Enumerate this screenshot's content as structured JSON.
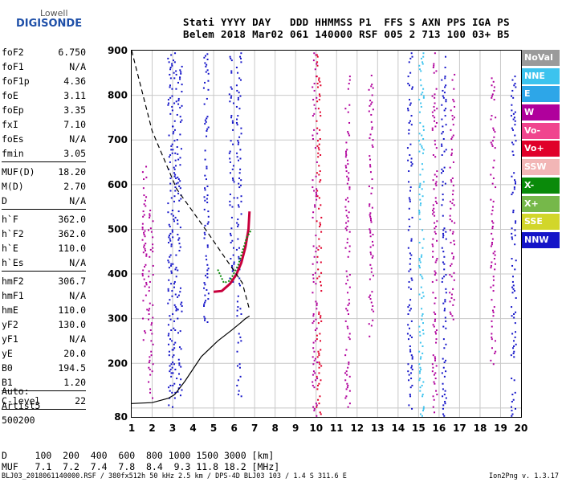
{
  "logo": {
    "top": "Lowell",
    "bottom": "DIGISONDE"
  },
  "header": {
    "row1": "Stati YYYY DAY   DDD HHMMSS P1  FFS S AXN PPS IGA PS",
    "row2": "Belem 2018 Mar02 061 140000 RSF 005 2 713 100 03+ B5"
  },
  "params": [
    {
      "k": "foF2",
      "v": "6.750"
    },
    {
      "k": "foF1",
      "v": "N/A"
    },
    {
      "k": "foF1p",
      "v": "4.36"
    },
    {
      "k": "foE",
      "v": "3.11"
    },
    {
      "k": "foEp",
      "v": "3.35"
    },
    {
      "k": "fxI",
      "v": "7.10"
    },
    {
      "k": "foEs",
      "v": "N/A"
    },
    {
      "k": "fmin",
      "v": "3.05"
    },
    {
      "sep": true
    },
    {
      "k": "MUF(D)",
      "v": "18.20"
    },
    {
      "k": "M(D)",
      "v": "2.70"
    },
    {
      "k": "D",
      "v": "N/A"
    },
    {
      "sep": true
    },
    {
      "k": "h`F",
      "v": "362.0"
    },
    {
      "k": "h`F2",
      "v": "362.0"
    },
    {
      "k": "h`E",
      "v": "110.0"
    },
    {
      "k": "h`Es",
      "v": "N/A"
    },
    {
      "sep": true
    },
    {
      "k": "hmF2",
      "v": "306.7"
    },
    {
      "k": "hmF1",
      "v": "N/A"
    },
    {
      "k": "hmE",
      "v": "110.0"
    },
    {
      "k": "yF2",
      "v": "130.0"
    },
    {
      "k": "yF1",
      "v": "N/A"
    },
    {
      "k": "yE",
      "v": "20.0"
    },
    {
      "k": "B0",
      "v": "194.5"
    },
    {
      "k": "B1",
      "v": "1.20"
    },
    {
      "sep": true
    },
    {
      "k": "C-level",
      "v": "22"
    },
    {
      "sep": true
    }
  ],
  "auto": {
    "l1": "Auto:",
    "l2": "Artist5",
    "l3": "500200"
  },
  "legend": [
    {
      "label": "NoVal",
      "color": "#9a9a9a"
    },
    {
      "label": "NNE",
      "color": "#3cc3ee"
    },
    {
      "label": "E",
      "color": "#2da6e8"
    },
    {
      "label": "W",
      "color": "#b0009c"
    },
    {
      "label": "Vo-",
      "color": "#f0458e"
    },
    {
      "label": "Vo+",
      "color": "#e0002a"
    },
    {
      "label": "SSW",
      "color": "#f2b6b6"
    },
    {
      "label": "X-",
      "color": "#0a8a0a"
    },
    {
      "label": "X+",
      "color": "#76b84a"
    },
    {
      "label": "SSE",
      "color": "#d2d62a"
    },
    {
      "label": "NNW",
      "color": "#1414c8"
    }
  ],
  "bottom": {
    "drow": "D     100  200  400  600  800 1000 1500 3000 [km]",
    "mufrow": "MUF   7.1  7.2  7.4  7.8  8.4  9.3 11.8 18.2 [MHz]",
    "footer": "BLJ03_2018061140000.RSF / 380fx512h 50 kHz 2.5 km / DPS-4D BLJ03 103 / 1.4 S 311.6 E",
    "version": "Ion2Png v. 1.3.17"
  },
  "chart_data": {
    "type": "scatter",
    "title": "",
    "xlabel": "",
    "ylabel": "",
    "xlim": [
      1,
      20
    ],
    "ylim": [
      80,
      900
    ],
    "x_ticks": [
      1,
      2,
      3,
      4,
      5,
      6,
      7,
      8,
      9,
      10,
      11,
      12,
      13,
      14,
      15,
      16,
      17,
      18,
      19,
      20
    ],
    "y_ticks": [
      80,
      100,
      200,
      300,
      400,
      500,
      600,
      700,
      800,
      900
    ],
    "y_tick_labels": [
      "80",
      "",
      "200",
      "300",
      "400",
      "500",
      "600",
      "700",
      "800",
      "900"
    ],
    "grid": true,
    "bands": [
      {
        "x": 3.05,
        "y0": 100,
        "y1": 900,
        "color": "#1414c8"
      },
      {
        "x": 3.3,
        "y0": 130,
        "y1": 900,
        "color": "#1414c8"
      },
      {
        "x": 2.85,
        "y0": 80,
        "y1": 900,
        "color": "#1414c8"
      },
      {
        "x": 4.6,
        "y0": 290,
        "y1": 900,
        "color": "#1414c8"
      },
      {
        "x": 5.85,
        "y0": 380,
        "y1": 900,
        "color": "#1414c8"
      },
      {
        "x": 6.2,
        "y0": 120,
        "y1": 900,
        "color": "#1414c8"
      },
      {
        "x": 9.9,
        "y0": 80,
        "y1": 900,
        "color": "#b0009c"
      },
      {
        "x": 10.1,
        "y0": 80,
        "y1": 900,
        "color": "#e0002a"
      },
      {
        "x": 11.5,
        "y0": 100,
        "y1": 850,
        "color": "#b0009c"
      },
      {
        "x": 12.65,
        "y0": 250,
        "y1": 850,
        "color": "#b0009c"
      },
      {
        "x": 14.55,
        "y0": 100,
        "y1": 900,
        "color": "#1414c8"
      },
      {
        "x": 15.1,
        "y0": 80,
        "y1": 900,
        "color": "#3cc3ee"
      },
      {
        "x": 15.75,
        "y0": 80,
        "y1": 900,
        "color": "#b0009c"
      },
      {
        "x": 16.2,
        "y0": 80,
        "y1": 900,
        "color": "#1414c8"
      },
      {
        "x": 16.6,
        "y0": 300,
        "y1": 850,
        "color": "#b0009c"
      },
      {
        "x": 18.6,
        "y0": 200,
        "y1": 850,
        "color": "#b0009c"
      },
      {
        "x": 19.6,
        "y0": 80,
        "y1": 850,
        "color": "#1414c8"
      },
      {
        "x": 1.6,
        "y0": 250,
        "y1": 650,
        "color": "#b0009c"
      },
      {
        "x": 1.9,
        "y0": 120,
        "y1": 550,
        "color": "#b0009c"
      }
    ],
    "trace_o": [
      [
        5.0,
        360
      ],
      [
        5.4,
        362
      ],
      [
        5.8,
        378
      ],
      [
        6.1,
        398
      ],
      [
        6.35,
        425
      ],
      [
        6.55,
        460
      ],
      [
        6.7,
        500
      ],
      [
        6.75,
        540
      ]
    ],
    "trace_x": [
      [
        5.2,
        410
      ],
      [
        5.5,
        380
      ],
      [
        5.8,
        385
      ],
      [
        6.2,
        420
      ],
      [
        6.6,
        480
      ],
      [
        6.85,
        500
      ]
    ],
    "profile": [
      [
        1,
        110
      ],
      [
        2,
        112
      ],
      [
        2.8,
        122
      ],
      [
        3.1,
        130
      ],
      [
        3.6,
        160
      ],
      [
        4.4,
        215
      ],
      [
        5.2,
        250
      ],
      [
        5.9,
        275
      ],
      [
        6.3,
        290
      ],
      [
        6.55,
        300
      ],
      [
        6.75,
        306
      ]
    ],
    "dashed": [
      [
        1,
        900
      ],
      [
        2,
        720
      ],
      [
        3.2,
        590
      ],
      [
        4.6,
        500
      ],
      [
        5.5,
        440
      ],
      [
        6.4,
        380
      ],
      [
        6.75,
        320
      ]
    ]
  }
}
